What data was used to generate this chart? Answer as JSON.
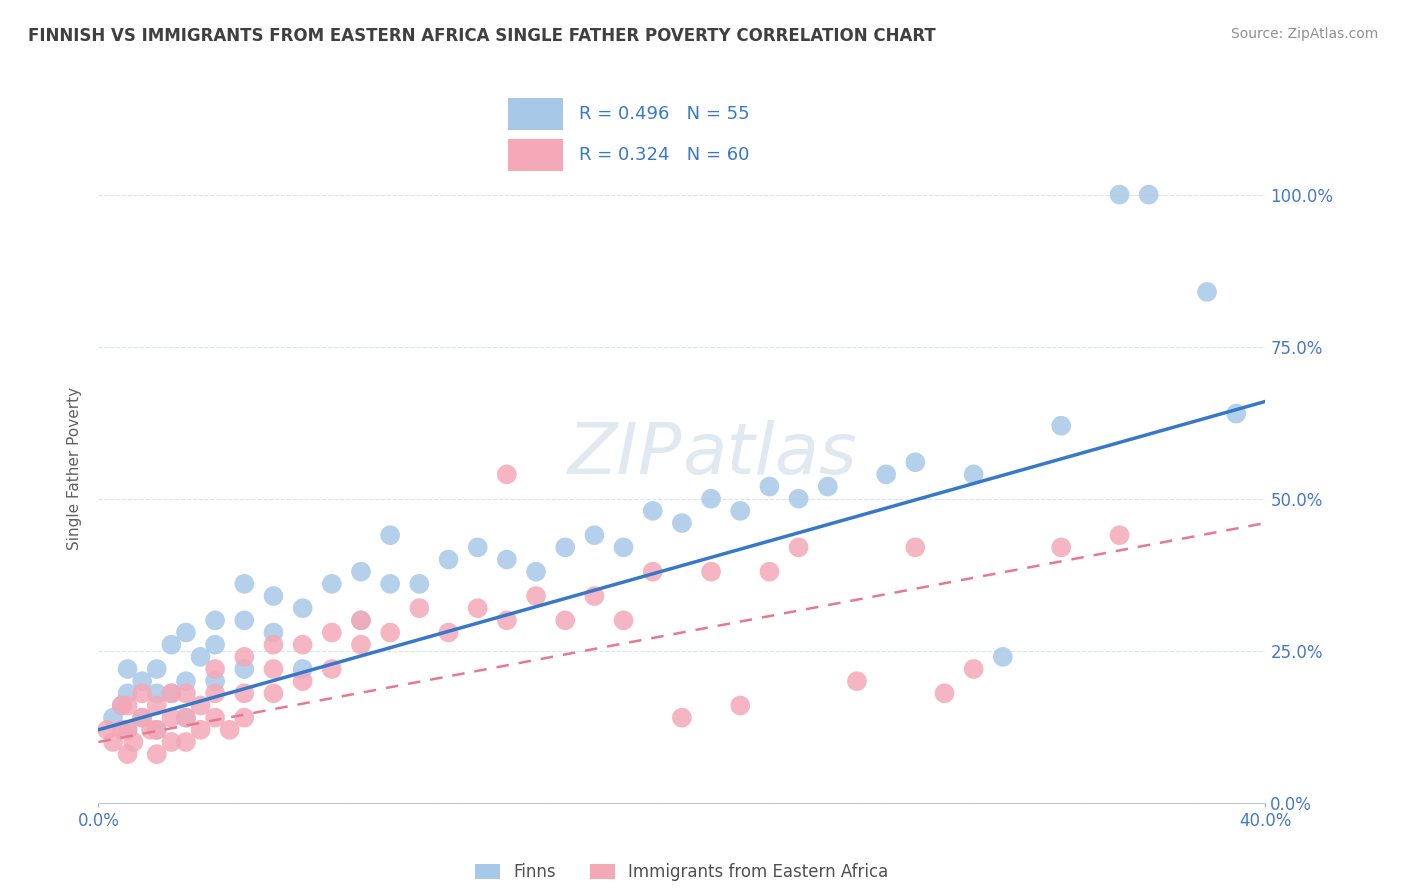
{
  "title": "FINNISH VS IMMIGRANTS FROM EASTERN AFRICA SINGLE FATHER POVERTY CORRELATION CHART",
  "source": "Source: ZipAtlas.com",
  "ylabel": "Single Father Poverty",
  "xlim": [
    0.0,
    0.4
  ],
  "ylim": [
    0.0,
    1.1
  ],
  "yticks": [
    0.0,
    0.25,
    0.5,
    0.75,
    1.0
  ],
  "right_ytick_labels": [
    "0.0%",
    "25.0%",
    "50.0%",
    "75.0%",
    "100.0%"
  ],
  "xtick_left_label": "0.0%",
  "xtick_right_label": "40.0%",
  "legend_r_finns": "R = 0.496",
  "legend_n_finns": "N = 55",
  "legend_r_immigrants": "R = 0.324",
  "legend_n_immigrants": "N = 60",
  "finns_color": "#a8c8e8",
  "immigrants_color": "#f4a8b8",
  "finns_line_color": "#3878c8",
  "immigrants_line_color": "#e87890",
  "legend_text_color": "#3878c8",
  "title_color": "#404040",
  "watermark": "ZIPatlas",
  "background_color": "#ffffff",
  "grid_color": "#d8e4f0",
  "finns_scatter_x": [
    0.005,
    0.008,
    0.01,
    0.01,
    0.01,
    0.015,
    0.015,
    0.02,
    0.02,
    0.02,
    0.025,
    0.025,
    0.03,
    0.03,
    0.03,
    0.035,
    0.04,
    0.04,
    0.04,
    0.05,
    0.05,
    0.05,
    0.06,
    0.06,
    0.07,
    0.07,
    0.08,
    0.09,
    0.09,
    0.1,
    0.1,
    0.11,
    0.12,
    0.13,
    0.14,
    0.15,
    0.16,
    0.17,
    0.18,
    0.19,
    0.2,
    0.21,
    0.22,
    0.23,
    0.24,
    0.25,
    0.27,
    0.28,
    0.3,
    0.31,
    0.33,
    0.35,
    0.36,
    0.38,
    0.39
  ],
  "finns_scatter_y": [
    0.14,
    0.16,
    0.12,
    0.18,
    0.22,
    0.14,
    0.2,
    0.12,
    0.18,
    0.22,
    0.18,
    0.26,
    0.14,
    0.2,
    0.28,
    0.24,
    0.2,
    0.26,
    0.3,
    0.22,
    0.3,
    0.36,
    0.28,
    0.34,
    0.22,
    0.32,
    0.36,
    0.3,
    0.38,
    0.36,
    0.44,
    0.36,
    0.4,
    0.42,
    0.4,
    0.38,
    0.42,
    0.44,
    0.42,
    0.48,
    0.46,
    0.5,
    0.48,
    0.52,
    0.5,
    0.52,
    0.54,
    0.56,
    0.54,
    0.24,
    0.62,
    1.0,
    1.0,
    0.84,
    0.64
  ],
  "immigrants_scatter_x": [
    0.003,
    0.005,
    0.008,
    0.008,
    0.01,
    0.01,
    0.01,
    0.012,
    0.015,
    0.015,
    0.018,
    0.02,
    0.02,
    0.02,
    0.025,
    0.025,
    0.025,
    0.03,
    0.03,
    0.03,
    0.035,
    0.035,
    0.04,
    0.04,
    0.04,
    0.045,
    0.05,
    0.05,
    0.05,
    0.06,
    0.06,
    0.06,
    0.07,
    0.07,
    0.08,
    0.08,
    0.09,
    0.09,
    0.1,
    0.11,
    0.12,
    0.13,
    0.14,
    0.14,
    0.15,
    0.16,
    0.17,
    0.18,
    0.19,
    0.2,
    0.21,
    0.22,
    0.23,
    0.24,
    0.26,
    0.28,
    0.29,
    0.3,
    0.33,
    0.35
  ],
  "immigrants_scatter_y": [
    0.12,
    0.1,
    0.12,
    0.16,
    0.08,
    0.12,
    0.16,
    0.1,
    0.14,
    0.18,
    0.12,
    0.08,
    0.12,
    0.16,
    0.1,
    0.14,
    0.18,
    0.1,
    0.14,
    0.18,
    0.12,
    0.16,
    0.14,
    0.18,
    0.22,
    0.12,
    0.14,
    0.18,
    0.24,
    0.18,
    0.22,
    0.26,
    0.2,
    0.26,
    0.22,
    0.28,
    0.26,
    0.3,
    0.28,
    0.32,
    0.28,
    0.32,
    0.54,
    0.3,
    0.34,
    0.3,
    0.34,
    0.3,
    0.38,
    0.14,
    0.38,
    0.16,
    0.38,
    0.42,
    0.2,
    0.42,
    0.18,
    0.22,
    0.42,
    0.44
  ],
  "finns_trendline_x": [
    0.0,
    0.4
  ],
  "finns_trendline_y": [
    0.12,
    0.66
  ],
  "immigrants_trendline_x": [
    0.0,
    0.4
  ],
  "immigrants_trendline_y": [
    0.1,
    0.46
  ]
}
